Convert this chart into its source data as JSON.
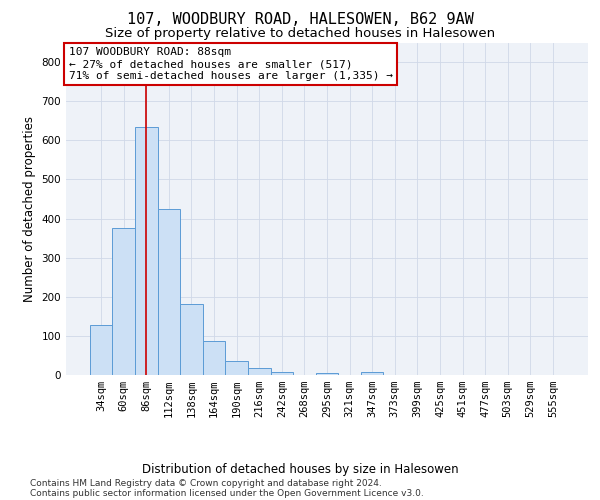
{
  "title1": "107, WOODBURY ROAD, HALESOWEN, B62 9AW",
  "title2": "Size of property relative to detached houses in Halesowen",
  "xlabel": "Distribution of detached houses by size in Halesowen",
  "ylabel": "Number of detached properties",
  "bar_labels": [
    "34sqm",
    "60sqm",
    "86sqm",
    "112sqm",
    "138sqm",
    "164sqm",
    "190sqm",
    "216sqm",
    "242sqm",
    "268sqm",
    "295sqm",
    "321sqm",
    "347sqm",
    "373sqm",
    "399sqm",
    "425sqm",
    "451sqm",
    "477sqm",
    "503sqm",
    "529sqm",
    "555sqm"
  ],
  "bar_values": [
    127,
    375,
    635,
    425,
    182,
    88,
    35,
    18,
    8,
    0,
    5,
    0,
    7,
    0,
    0,
    0,
    0,
    0,
    0,
    0,
    0
  ],
  "bar_color": "#cce0f5",
  "bar_edge_color": "#5b9bd5",
  "vline_x_index": 2,
  "vline_color": "#cc0000",
  "annotation_line1": "107 WOODBURY ROAD: 88sqm",
  "annotation_line2": "← 27% of detached houses are smaller (517)",
  "annotation_line3": "71% of semi-detached houses are larger (1,335) →",
  "annotation_box_color": "#ffffff",
  "annotation_box_edge": "#cc0000",
  "ylim": [
    0,
    850
  ],
  "yticks": [
    0,
    100,
    200,
    300,
    400,
    500,
    600,
    700,
    800
  ],
  "grid_color": "#d0d8e8",
  "bg_color": "#eef2f8",
  "footer_line1": "Contains HM Land Registry data © Crown copyright and database right 2024.",
  "footer_line2": "Contains public sector information licensed under the Open Government Licence v3.0.",
  "title_fontsize": 11,
  "subtitle_fontsize": 9.5,
  "axis_label_fontsize": 8.5,
  "tick_fontsize": 7.5,
  "annotation_fontsize": 8,
  "footer_fontsize": 6.5
}
